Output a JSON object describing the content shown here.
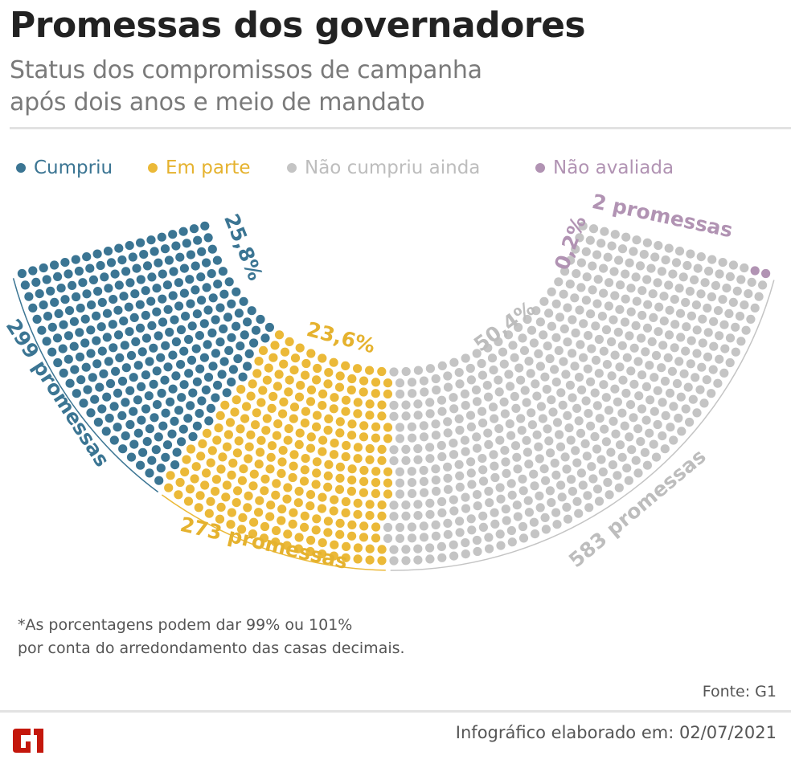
{
  "header": {
    "title": "Promessas dos governadores",
    "subtitle_line1": "Status dos compromissos de campanha",
    "subtitle_line2": "após dois anos e meio de mandato"
  },
  "chart_data": {
    "type": "parliament dot chart",
    "total": 1157,
    "legend_placement": "top",
    "series": [
      {
        "name": "Cumpriu",
        "count": 299,
        "percent_label": "25,8%",
        "count_label": "299 promessas",
        "color": "#3b7593"
      },
      {
        "name": "Em parte",
        "count": 273,
        "percent_label": "23,6%",
        "count_label": "273 promessas",
        "color": "#ebb938"
      },
      {
        "name": "Não cumpriu ainda",
        "count": 583,
        "percent_label": "50,4%",
        "count_label": "583 promessas",
        "color": "#c4c4c4"
      },
      {
        "name": "Não avaliada",
        "count": 2,
        "percent_label": "0,2%",
        "count_label": "2 promessas",
        "color": "#b193b3"
      }
    ]
  },
  "footer": {
    "note_line1": "*As porcentagens podem dar 99% ou 101%",
    "note_line2": "por conta do arredondamento das casas decimais.",
    "source": "Fonte: G1",
    "date": "Infográfico elaborado em: 02/07/2021",
    "logo_text": "G1",
    "logo_color": "#c4170c"
  }
}
